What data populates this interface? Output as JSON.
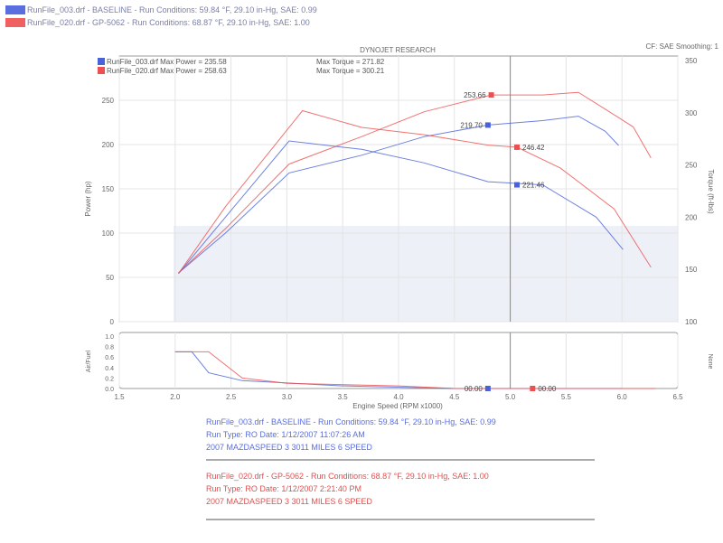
{
  "header": {
    "runs": [
      {
        "text": "RunFile_003.drf - BASELINE  -  Run Conditions: 59.84 °F, 29.10 in-Hg, SAE: 0.99",
        "color": "#4a62d8"
      },
      {
        "text": "RunFile_020.drf - GP-5062  -  Run Conditions: 68.87 °F, 29.10 in-Hg, SAE: 1.00",
        "color": "#ee5050"
      }
    ]
  },
  "footer": {
    "blue": [
      "RunFile_003.drf - BASELINE  -  Run Conditions: 59.84 °F, 29.10 in-Hg, SAE: 0.99",
      "Run Type: RO  Date: 1/12/2007 11:07:26 AM",
      "2007 MAZDASPEED 3  3011 MILES 6 SPEED"
    ],
    "red": [
      "RunFile_020.drf - GP-5062  -  Run Conditions: 68.87 °F, 29.10 in-Hg, SAE: 1.00",
      "Run Type: RO  Date: 1/12/2007 2:21:40 PM",
      "2007 MAZDASPEED 3  3011 MILES 6 SPEED"
    ]
  },
  "chart_data": {
    "type": "line",
    "title": "DYNOJET RESEARCH",
    "settings": "CF: SAE  Smoothing: 1",
    "legend": [
      {
        "text": "RunFile_003.drf Max Power = 235.58",
        "torque": "Max Torque = 271.82",
        "color": "#4a62d8"
      },
      {
        "text": "RunFile_020.drf Max Power = 258.63",
        "torque": "Max Torque = 300.21",
        "color": "#ee5050"
      }
    ],
    "xlabel": "Engine Speed (RPM x1000)",
    "ylabel_left": "Power (hp)",
    "ylabel_right": "Torque (ft-lbs)",
    "ylabel_lower": "Air/Fuel",
    "ylabel_lower_right": "None",
    "xlim": [
      1.5,
      6.5
    ],
    "xticks": [
      "1.5",
      "2.0",
      "2.5",
      "3.0",
      "3.5",
      "4.0",
      "4.5",
      "5.0",
      "5.5",
      "6.0",
      "6.5"
    ],
    "power_lim": [
      0,
      300
    ],
    "power_ticks": [
      "0",
      "50",
      "100",
      "150",
      "200",
      "250"
    ],
    "torque_lim": [
      100,
      350
    ],
    "torque_ticks": [
      "100",
      "150",
      "200",
      "250",
      "300",
      "350"
    ],
    "afr_lim": [
      0,
      1.0
    ],
    "afr_ticks": [
      "0.0",
      "0.2",
      "0.4",
      "0.6",
      "0.8",
      "1.0"
    ],
    "grid": true,
    "cursor_rpm": 5.0,
    "series": [
      {
        "kind": "power",
        "color": "#4a62d8",
        "x": [
          2.03,
          2.45,
          3.02,
          3.67,
          4.23,
          4.8,
          5.29,
          5.61,
          5.85,
          5.97
        ],
        "y": [
          55,
          100,
          168,
          188,
          209,
          222,
          227,
          232,
          215,
          199
        ]
      },
      {
        "kind": "power",
        "color": "#ee5050",
        "x": [
          2.03,
          2.45,
          3.02,
          3.67,
          4.23,
          4.83,
          5.29,
          5.61,
          5.85,
          6.1,
          6.26
        ],
        "y": [
          55,
          105,
          178,
          209,
          237,
          256,
          256,
          259,
          240,
          220,
          185
        ]
      },
      {
        "kind": "torque",
        "color": "#4a62d8",
        "x": [
          2.03,
          2.45,
          3.02,
          3.67,
          4.23,
          4.8,
          5.29,
          5.77,
          6.01
        ],
        "y": [
          146,
          200,
          273,
          265,
          252,
          234,
          231,
          200,
          169
        ]
      },
      {
        "kind": "torque",
        "color": "#ee5050",
        "x": [
          2.03,
          2.45,
          3.14,
          3.67,
          4.23,
          4.8,
          5.06,
          5.45,
          5.93,
          6.26
        ],
        "y": [
          146,
          210,
          302,
          286,
          279,
          269,
          267,
          247,
          208,
          152
        ]
      },
      {
        "kind": "afr",
        "color": "#4a62d8",
        "x": [
          2.0,
          2.15,
          2.3,
          2.6,
          3.5,
          4.5,
          6.0
        ],
        "y": [
          0.7,
          0.7,
          0.3,
          0.15,
          0.05,
          0,
          0
        ]
      },
      {
        "kind": "afr",
        "color": "#ee5050",
        "x": [
          2.0,
          2.3,
          2.6,
          3.0,
          4.0,
          4.5,
          6.3
        ],
        "y": [
          0.7,
          0.7,
          0.2,
          0.1,
          0.05,
          0,
          0
        ]
      }
    ],
    "markers": [
      {
        "kind": "power",
        "x": 4.83,
        "y": 256,
        "label": "253.66",
        "color": "#ee5050",
        "side": "left"
      },
      {
        "kind": "power",
        "x": 4.8,
        "y": 222,
        "label": "219.70",
        "color": "#4a62d8",
        "side": "left"
      },
      {
        "kind": "torque",
        "x": 5.06,
        "y": 267,
        "label": "246.42",
        "color": "#ee5050",
        "side": "right"
      },
      {
        "kind": "torque",
        "x": 5.06,
        "y": 231,
        "label": "221.46",
        "color": "#4a62d8",
        "side": "right"
      },
      {
        "kind": "afr",
        "x": 4.8,
        "y": 0,
        "label": "00.00",
        "color": "#4a62d8",
        "side": "left"
      },
      {
        "kind": "afr",
        "x": 5.2,
        "y": 0,
        "label": "00.00",
        "color": "#ee5050",
        "side": "right"
      }
    ]
  }
}
